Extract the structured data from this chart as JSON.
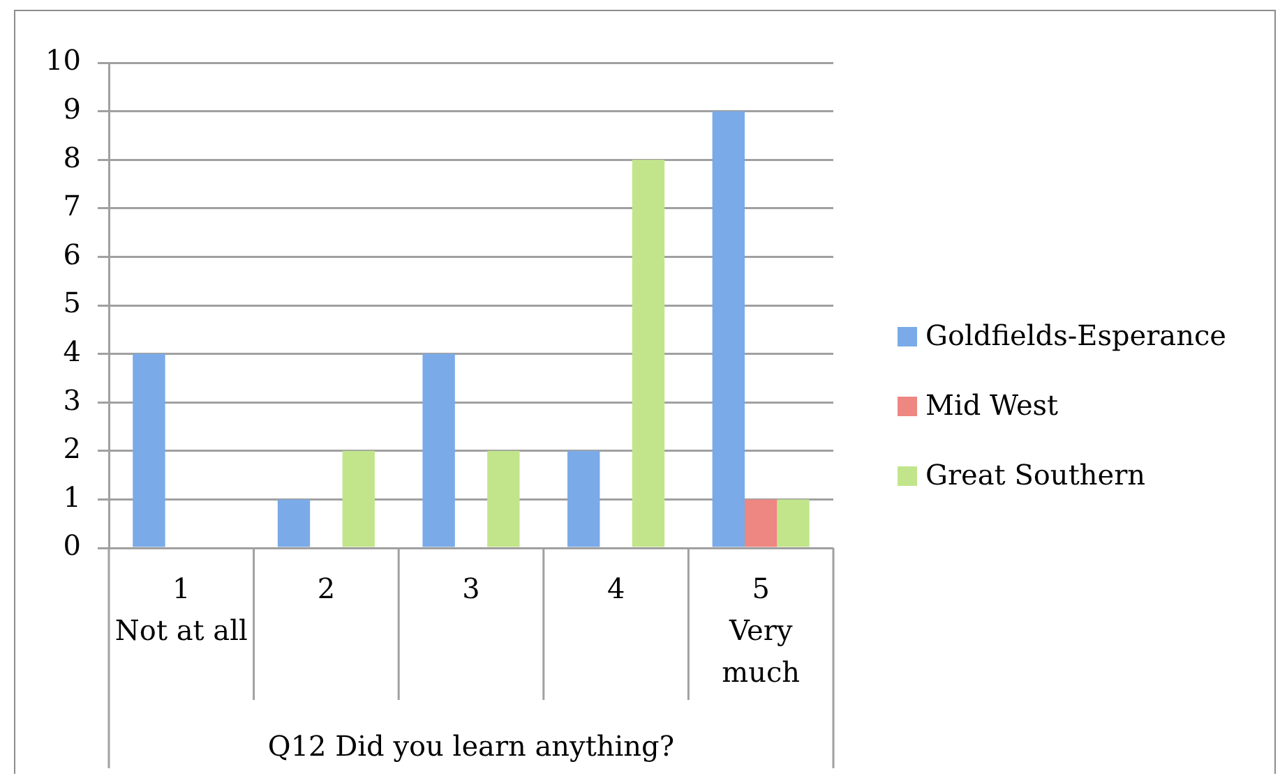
{
  "chart_data": {
    "type": "bar",
    "xlabel": "Q12 Did you learn anything?",
    "categories": [
      "1\nNot at all",
      "2",
      "3",
      "4",
      "5\nVery much"
    ],
    "series": [
      {
        "name": "Goldfields-Esperance",
        "color": "#7aaae8",
        "values": [
          4,
          1,
          4,
          2,
          9
        ]
      },
      {
        "name": "Mid West",
        "color": "#ee8682",
        "values": [
          0,
          0,
          0,
          0,
          1
        ]
      },
      {
        "name": "Great Southern",
        "color": "#c2e58c",
        "values": [
          0,
          2,
          2,
          8,
          1
        ]
      }
    ],
    "ylim": [
      0,
      10
    ],
    "yticks": [
      0,
      1,
      2,
      3,
      4,
      5,
      6,
      7,
      8,
      9,
      10
    ],
    "grid": "y",
    "legend": "right"
  }
}
